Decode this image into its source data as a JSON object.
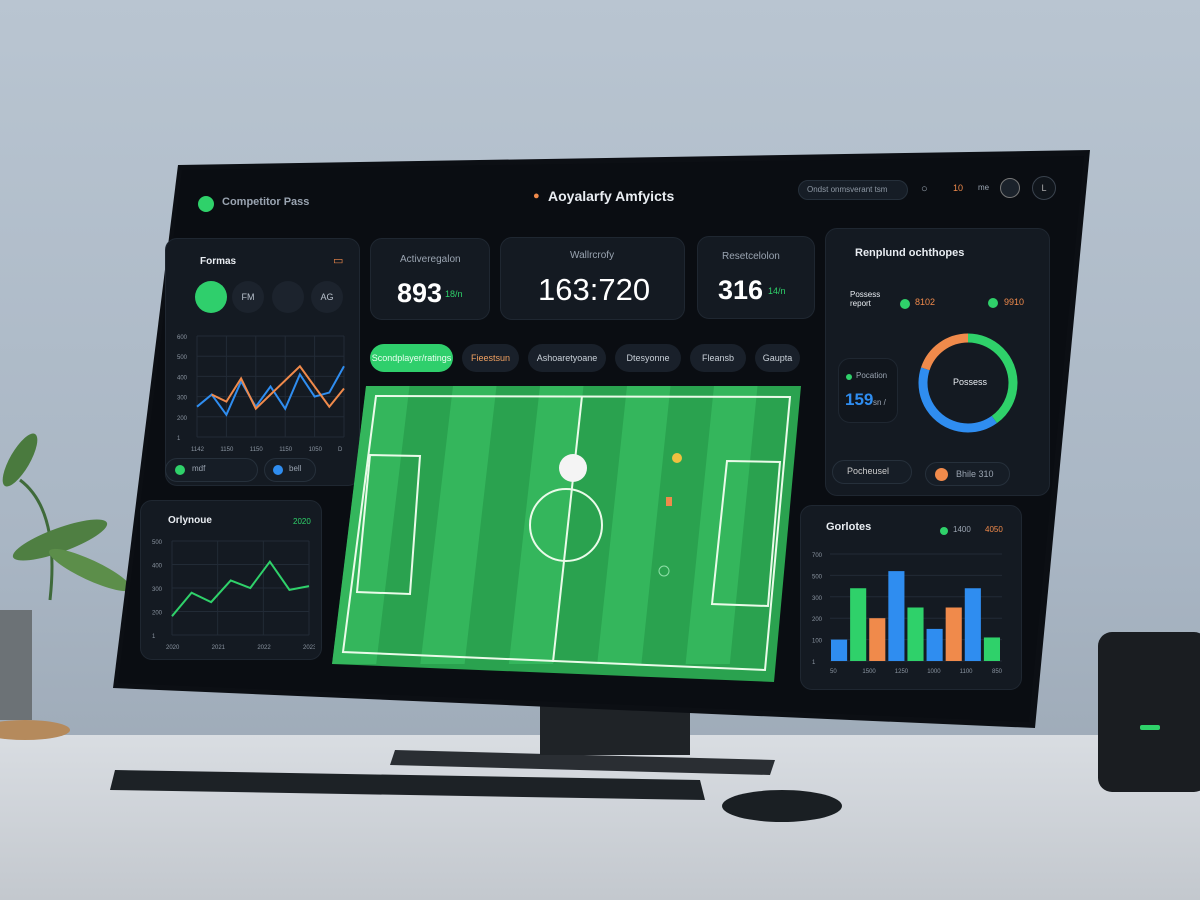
{
  "header": {
    "app_name": "Competitor Pass",
    "title": "Aoyalarfy Amfyicts",
    "search_placeholder": "Ondst onmsverant tsm",
    "notification_count": "10",
    "user_label": "me",
    "avatar_initial": "L"
  },
  "left_panel": {
    "title": "Formas",
    "chips": [
      "",
      "FM",
      "",
      "AG"
    ],
    "legend": [
      "mdf",
      "bell"
    ],
    "y_ticks": [
      "600",
      "500",
      "400",
      "300",
      "200",
      "1"
    ],
    "x_ticks": [
      "1142",
      "1150",
      "1150",
      "1150",
      "1050",
      "D"
    ],
    "series": [
      {
        "color": "#2f8df0",
        "values": [
          30,
          42,
          22,
          55,
          30,
          50,
          28,
          62,
          40,
          44,
          70
        ]
      },
      {
        "color": "#f08a4b",
        "values": [
          null,
          42,
          35,
          58,
          28,
          null,
          null,
          70,
          null,
          30,
          48
        ]
      }
    ]
  },
  "left_panel2": {
    "title": "Orlynoue",
    "badge": "2020",
    "y_ticks": [
      "500",
      "400",
      "300",
      "200",
      "1"
    ],
    "x_ticks": [
      "2020",
      "2021",
      "2022",
      "2023"
    ],
    "series": [
      {
        "color": "#2fd16a",
        "values": [
          20,
          45,
          35,
          58,
          50,
          78,
          48,
          52
        ]
      }
    ]
  },
  "kpis": [
    {
      "label": "Activeregalon",
      "value": "893",
      "delta": "18/n"
    },
    {
      "label": "Wallrcrofy",
      "value": "163:720"
    },
    {
      "label": "Resetcelolon",
      "value": "316",
      "delta": "14/n"
    }
  ],
  "tabs": [
    "Scondplayer/ratings",
    "Fieestsun",
    "Ashoaretyoane",
    "Dtesyonne",
    "Fleansb",
    "Gaupta"
  ],
  "right_panel": {
    "title": "Renplund ochthopes",
    "label": "Possess report",
    "stat1": "8102",
    "stat2": "9910",
    "card_label": "Pocation",
    "card_value": "159",
    "card_unit": "sn /",
    "donut_label": "Possess",
    "donut": [
      {
        "color": "#2fd16a",
        "value": 40
      },
      {
        "color": "#2f8df0",
        "value": 40
      },
      {
        "color": "#f08a4b",
        "value": 20
      }
    ],
    "pill1": "Pocheusel",
    "pill2": "Bhile 310"
  },
  "bar_panel": {
    "title": "Gorlotes",
    "legend1": "1400",
    "legend2": "4050",
    "y_ticks": [
      "700",
      "500",
      "300",
      "200",
      "100",
      "1"
    ],
    "x_ticks": [
      "50",
      "1500",
      "1250",
      "1000",
      "1100",
      "850"
    ],
    "bars": [
      {
        "color": "#2f8df0",
        "value": 20
      },
      {
        "color": "#2fd16a",
        "value": 68
      },
      {
        "color": "#f08a4b",
        "value": 40
      },
      {
        "color": "#2f8df0",
        "value": 84
      },
      {
        "color": "#2fd16a",
        "value": 50
      },
      {
        "color": "#2f8df0",
        "value": 30
      },
      {
        "color": "#f08a4b",
        "value": 50
      },
      {
        "color": "#2f8df0",
        "value": 68
      },
      {
        "color": "#2fd16a",
        "value": 22
      }
    ]
  },
  "colors": {
    "accent": "#2fd16a",
    "blue": "#2f8df0",
    "orange": "#f08a4b",
    "pitch": "#2aa24f"
  }
}
